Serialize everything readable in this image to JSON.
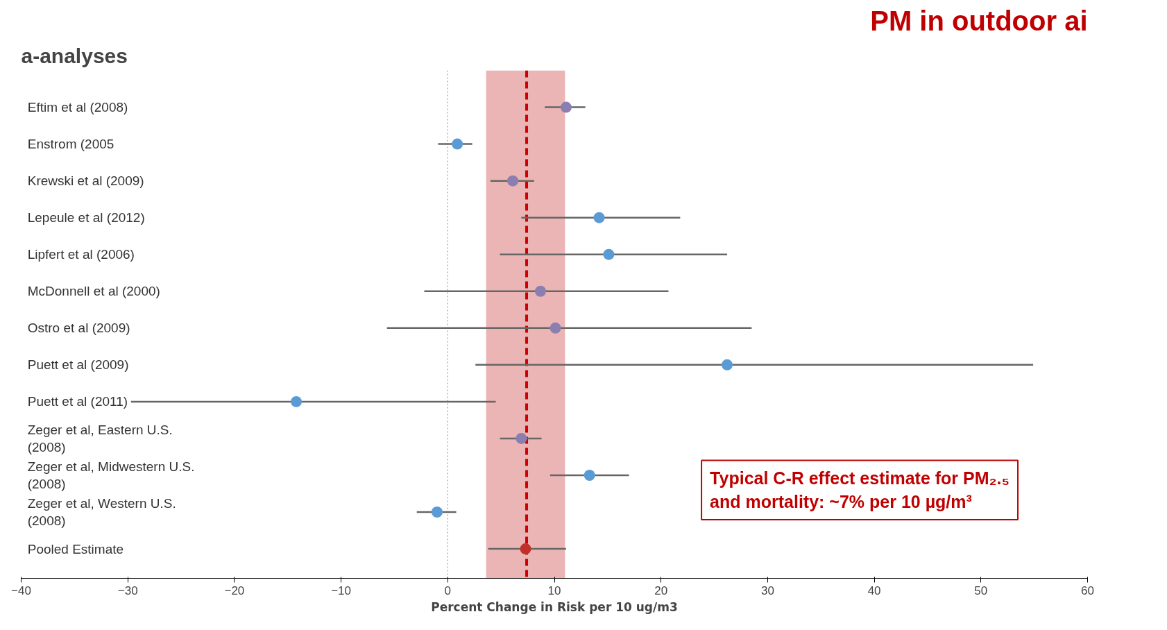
{
  "chart_data": {
    "type": "scatter",
    "title": "a-analyses",
    "xlabel": "Percent Change in Risk per 10 ug/m3",
    "categories": [
      "Eftim et al (2008)",
      "Enstrom (2005",
      "Krewski et al (2009)",
      "Lepeule et al (2012)",
      "Lipfert et al (2006)",
      "McDonnell et al (2000)",
      "Ostro et al (2009)",
      "Puett et al (2009)",
      "Puett et al (2011)",
      "Zeger et al, Eastern U.S. (2008)",
      "Zeger et al, Midwestern U.S. (2008)",
      "Zeger et al, Western U.S. (2008)",
      "Pooled Estimate"
    ],
    "values": [
      11.1,
      0.9,
      6.1,
      14.2,
      15.1,
      8.7,
      10.1,
      26.2,
      -14.2,
      6.9,
      13.3,
      -1.0,
      7.3
    ],
    "errors": [
      [
        9.1,
        12.9
      ],
      [
        -0.9,
        2.3
      ],
      [
        4.0,
        8.1
      ],
      [
        6.9,
        21.8
      ],
      [
        4.9,
        26.2
      ],
      [
        -2.2,
        20.7
      ],
      [
        -5.7,
        28.5
      ],
      [
        2.6,
        54.9
      ],
      [
        -29.7,
        4.5
      ],
      [
        4.9,
        8.8
      ],
      [
        9.6,
        17.0
      ],
      [
        -2.9,
        0.8
      ],
      [
        3.8,
        11.1
      ]
    ],
    "colors": [
      "#8a7fb0",
      "#5b9bd5",
      "#8a7fb0",
      "#5b9bd5",
      "#5b9bd5",
      "#8a7fb0",
      "#8a7fb0",
      "#5b9bd5",
      "#5b9bd5",
      "#8a7fb0",
      "#5b9bd5",
      "#5b9bd5",
      "#c0302a"
    ],
    "orientation": "horizontal",
    "marker": "circle",
    "xlim": [
      -40,
      60
    ],
    "xticks": [
      -40,
      -30,
      -20,
      -10,
      0,
      10,
      20,
      30,
      40,
      50,
      60
    ],
    "grid": false,
    "ref_lines": [
      {
        "axis": "x",
        "value": 0,
        "label": null,
        "color": "#999999",
        "line_style": "dotted"
      },
      {
        "axis": "x",
        "value": 7.4,
        "label": null,
        "color": "#cc0000",
        "line_style": "dashed"
      }
    ],
    "bands": [
      {
        "axis": "x",
        "from": 3.6,
        "to": 11.0,
        "label": null,
        "color": "#e8a8a8"
      }
    ],
    "annotations": [
      "PM in outdoor ai",
      "Typical C-R effect estimate for PM₂.₅\nand mortality: ~7% per 10 µg/m³"
    ]
  }
}
